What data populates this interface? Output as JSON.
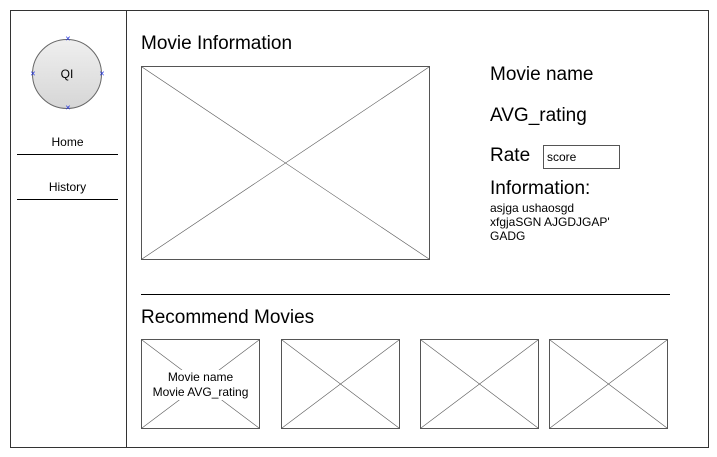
{
  "sidebar": {
    "logo_text": "QI",
    "items": [
      {
        "label": "Home"
      },
      {
        "label": "History"
      }
    ]
  },
  "movie_info": {
    "section_title": "Movie Information",
    "movie_name": "Movie name",
    "avg_rating": "AVG_rating",
    "rate_label": "Rate",
    "rate_input_value": "score",
    "information_label": "Information:",
    "information_lines": [
      "asjga ushaosgd",
      "xfgjaSGN AJGDJGAP'",
      "GADG"
    ]
  },
  "recommend": {
    "section_title": "Recommend Movies",
    "cards": [
      {
        "name": "Movie name",
        "rating": "Movie AVG_rating"
      },
      {
        "name": "",
        "rating": ""
      },
      {
        "name": "",
        "rating": ""
      },
      {
        "name": "",
        "rating": ""
      }
    ]
  },
  "icons": {
    "image_placeholder": "image-placeholder-icon",
    "logo": "logo-icon"
  }
}
